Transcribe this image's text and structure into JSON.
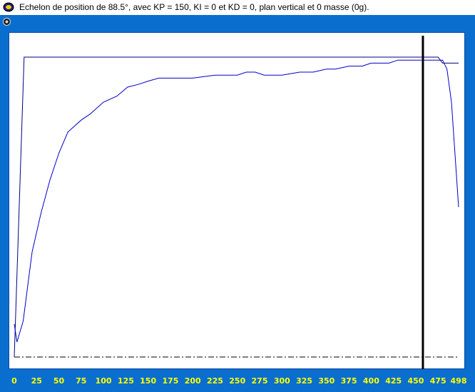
{
  "window": {
    "title": "Echelon de position de  88.5°, avec KP = 150, KI = 0 et KD = 0, plan vertical et 0 masse (0g)."
  },
  "colors": {
    "frame": "#0a6ecf",
    "plot_background": "#ffffff",
    "response_line": "#0000c8",
    "setpoint_line": "#000080",
    "cursor_line": "#000000",
    "tick_labels": "#ffff00"
  },
  "chart_data": {
    "type": "line",
    "xlim": [
      0,
      498
    ],
    "ylim": [
      0,
      100
    ],
    "x_ticks": [
      "0",
      "25",
      "50",
      "75",
      "100",
      "125",
      "150",
      "175",
      "200",
      "225",
      "250",
      "275",
      "300",
      "325",
      "350",
      "375",
      "400",
      "425",
      "450",
      "475",
      "498"
    ],
    "y_tick_labels": [],
    "grid": false,
    "cursor_x": 458,
    "baseline_y": 0,
    "series": [
      {
        "role": "setpoint",
        "points": [
          [
            0,
            0
          ],
          [
            0,
            0
          ],
          [
            11,
            100
          ],
          [
            25,
            100
          ],
          [
            100,
            100
          ],
          [
            200,
            100
          ],
          [
            300,
            100
          ],
          [
            400,
            100
          ],
          [
            450,
            100
          ],
          [
            475,
            100
          ],
          [
            480,
            98
          ],
          [
            498,
            98
          ]
        ]
      },
      {
        "role": "response",
        "points": [
          [
            0,
            11
          ],
          [
            3,
            5
          ],
          [
            10,
            12
          ],
          [
            20,
            35
          ],
          [
            30,
            48
          ],
          [
            40,
            59
          ],
          [
            50,
            68
          ],
          [
            60,
            75
          ],
          [
            75,
            79
          ],
          [
            85,
            81
          ],
          [
            100,
            85
          ],
          [
            115,
            87
          ],
          [
            127,
            90
          ],
          [
            140,
            91
          ],
          [
            150,
            92
          ],
          [
            162,
            93
          ],
          [
            175,
            93
          ],
          [
            200,
            93
          ],
          [
            225,
            94
          ],
          [
            250,
            94
          ],
          [
            260,
            95
          ],
          [
            270,
            95
          ],
          [
            280,
            94
          ],
          [
            300,
            94
          ],
          [
            320,
            95
          ],
          [
            335,
            95
          ],
          [
            350,
            96
          ],
          [
            360,
            96
          ],
          [
            375,
            97
          ],
          [
            390,
            97
          ],
          [
            400,
            98
          ],
          [
            410,
            98
          ],
          [
            420,
            98
          ],
          [
            430,
            99
          ],
          [
            440,
            99
          ],
          [
            450,
            99
          ],
          [
            460,
            99
          ],
          [
            470,
            99
          ],
          [
            480,
            99
          ],
          [
            485,
            96
          ],
          [
            490,
            85
          ],
          [
            498,
            50
          ]
        ]
      }
    ]
  }
}
